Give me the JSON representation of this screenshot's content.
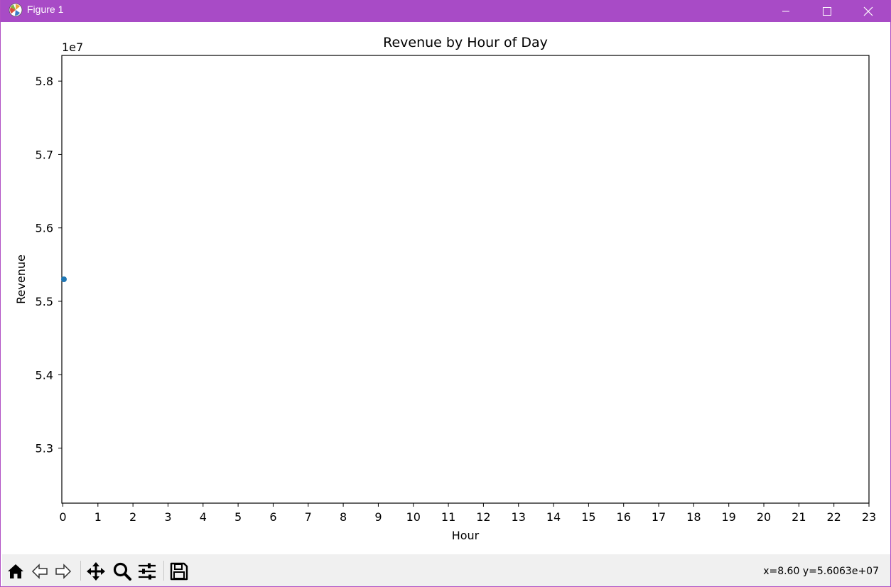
{
  "window": {
    "title": "Figure 1",
    "titlebar_color": "#a84bc6"
  },
  "toolbar": {
    "tools": [
      {
        "name": "home-icon",
        "tooltip": "Home"
      },
      {
        "name": "back-arrow-icon",
        "tooltip": "Back"
      },
      {
        "name": "forward-arrow-icon",
        "tooltip": "Forward"
      },
      {
        "name": "pan-icon",
        "tooltip": "Pan"
      },
      {
        "name": "zoom-icon",
        "tooltip": "Zoom"
      },
      {
        "name": "configure-subplots-icon",
        "tooltip": "Configure subplots"
      },
      {
        "name": "save-icon",
        "tooltip": "Save"
      }
    ],
    "coordinates": "x=8.60 y=5.6063e+07"
  },
  "chart_data": {
    "type": "scatter",
    "title": "Revenue by Hour of Day",
    "xlabel": "Hour",
    "ylabel": "Revenue",
    "offset_text": "1e7",
    "x_ticks": [
      "0",
      "1",
      "2",
      "3",
      "4",
      "5",
      "6",
      "7",
      "8",
      "9",
      "10",
      "11",
      "12",
      "13",
      "14",
      "15",
      "16",
      "17",
      "18",
      "19",
      "20",
      "21",
      "22",
      "23"
    ],
    "y_ticks": [
      "5.3",
      "5.4",
      "5.5",
      "5.6",
      "5.7",
      "5.8"
    ],
    "y_tick_values": [
      53000000,
      54000000,
      55000000,
      56000000,
      57000000,
      58000000
    ],
    "xlim": [
      -0.03,
      23
    ],
    "ylim": [
      52250000,
      58350000
    ],
    "grid": false,
    "series": [
      {
        "color": "#1f77b4",
        "points": [
          {
            "x": 0.03,
            "y": 55300000
          }
        ]
      }
    ]
  }
}
